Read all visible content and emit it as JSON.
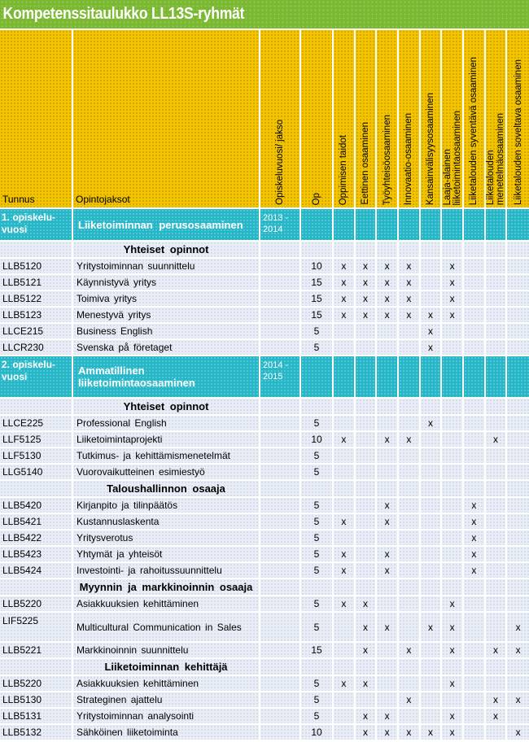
{
  "title": "Kompetenssitaulukko LL13S-ryhmät",
  "mark": "x",
  "colors": {
    "green": "#79b830",
    "yellow": "#f2c500",
    "teal": "#25b6c7",
    "row": "#e9edf5",
    "grid": "#ffffff",
    "text": "#000000",
    "title_text": "#ffffff"
  },
  "header": {
    "tunnus": "Tunnus",
    "opintojaksot": "Opintojaksot",
    "rotated": [
      "Opiskeluvuosi/ jakso",
      "Op",
      "Oppimisen taidot",
      "Eettinen osaaminen",
      "Työyhteisöosaaminen",
      "Innovaatio-osaaminen",
      "Kansainvälisyysosaaminen",
      "Laaja-alainen\nliiketoimintaosaaminen",
      "Liiketalouden syventävä osaaminen",
      "Liiketalouden\nmenetelmäosaaminen",
      "Liiketalouden soveltava osaaminen"
    ]
  },
  "rows": [
    {
      "type": "year",
      "tunnus": "1. opiskelu-\nvuosi",
      "name": "Liiketoiminnan perusosaaminen",
      "years": "2013 -\n2014"
    },
    {
      "type": "section",
      "label": "Yhteiset opinnot"
    },
    {
      "type": "course",
      "code": "LLB5120",
      "name": "Yritystoiminnan suunnittelu",
      "op": "10",
      "marks": [
        1,
        1,
        1,
        1,
        0,
        1,
        0,
        0,
        0
      ]
    },
    {
      "type": "course",
      "code": "LLB5121",
      "name": "Käynnistyvä yritys",
      "op": "15",
      "marks": [
        1,
        1,
        1,
        1,
        0,
        1,
        0,
        0,
        0
      ]
    },
    {
      "type": "course",
      "code": "LLB5122",
      "name": "Toimiva yritys",
      "op": "15",
      "marks": [
        1,
        1,
        1,
        1,
        0,
        1,
        0,
        0,
        0
      ]
    },
    {
      "type": "course",
      "code": "LLB5123",
      "name": "Menestyvä yritys",
      "op": "15",
      "marks": [
        1,
        1,
        1,
        1,
        1,
        1,
        0,
        0,
        0
      ]
    },
    {
      "type": "course",
      "code": "LLCE215",
      "name": "Business English",
      "op": "5",
      "marks": [
        0,
        0,
        0,
        0,
        1,
        0,
        0,
        0,
        0
      ]
    },
    {
      "type": "course",
      "code": "LLCR230",
      "name": "Svenska på företaget",
      "op": "5",
      "marks": [
        0,
        0,
        0,
        0,
        1,
        0,
        0,
        0,
        0
      ]
    },
    {
      "type": "year",
      "tunnus": "2. opiskelu-\nvuosi",
      "name": "Ammatillinen\nliiketoimintaosaaminen",
      "years": "2014 -\n2015"
    },
    {
      "type": "section",
      "label": "Yhteiset opinnot"
    },
    {
      "type": "course",
      "code": "LLCE225",
      "name": "Professional English",
      "op": "5",
      "marks": [
        0,
        0,
        0,
        0,
        1,
        0,
        0,
        0,
        0
      ]
    },
    {
      "type": "course",
      "code": "LLF5125",
      "name": "Liiketoimintaprojekti",
      "op": "10",
      "marks": [
        1,
        0,
        1,
        1,
        0,
        0,
        0,
        1,
        0
      ]
    },
    {
      "type": "course",
      "code": "LLF5130",
      "name": "Tutkimus- ja kehittämismenetelmät",
      "op": "5",
      "marks": [
        0,
        0,
        0,
        0,
        0,
        0,
        0,
        0,
        0
      ]
    },
    {
      "type": "course",
      "code": "LLG5140",
      "name": "Vuorovaikutteinen esimiestyö",
      "op": "5",
      "marks": [
        0,
        0,
        0,
        0,
        0,
        0,
        0,
        0,
        0
      ]
    },
    {
      "type": "section",
      "label": "Taloushallinnon osaaja"
    },
    {
      "type": "course",
      "code": "LLB5420",
      "name": "Kirjanpito ja tilinpäätös",
      "op": "5",
      "marks": [
        0,
        0,
        1,
        0,
        0,
        0,
        1,
        0,
        0
      ]
    },
    {
      "type": "course",
      "code": "LLB5421",
      "name": "Kustannuslaskenta",
      "op": "5",
      "marks": [
        1,
        0,
        1,
        0,
        0,
        0,
        1,
        0,
        0
      ]
    },
    {
      "type": "course",
      "code": "LLB5422",
      "name": "Yritysverotus",
      "op": "5",
      "marks": [
        0,
        0,
        0,
        0,
        0,
        0,
        1,
        0,
        0
      ]
    },
    {
      "type": "course",
      "code": "LLB5423",
      "name": "Yhtymät ja yhteisöt",
      "op": "5",
      "marks": [
        1,
        0,
        1,
        0,
        0,
        0,
        1,
        0,
        0
      ]
    },
    {
      "type": "course",
      "code": "LLB5424",
      "name": "Investointi- ja rahoitussuunnittelu",
      "op": "5",
      "marks": [
        1,
        0,
        1,
        0,
        0,
        0,
        1,
        0,
        0
      ]
    },
    {
      "type": "section",
      "label": "Myynnin ja markkinoinnin osaaja"
    },
    {
      "type": "course",
      "code": "LLB5220",
      "name": "Asiakkuuksien kehittäminen",
      "op": "5",
      "marks": [
        1,
        1,
        0,
        0,
        0,
        1,
        0,
        0,
        0
      ]
    },
    {
      "type": "course",
      "code": "LIF5225",
      "name": "Multicultural Communication in Sales",
      "op": "5",
      "tall": true,
      "marks": [
        0,
        1,
        1,
        0,
        1,
        1,
        0,
        0,
        1
      ]
    },
    {
      "type": "course",
      "code": "LLB5221",
      "name": "Markkinoinnin suunnittelu",
      "op": "15",
      "marks": [
        0,
        1,
        0,
        1,
        0,
        1,
        0,
        1,
        1
      ]
    },
    {
      "type": "section",
      "label": "Liiketoiminnan kehittäjä"
    },
    {
      "type": "course",
      "code": "LLB5220",
      "name": "Asiakkuuksien kehittäminen",
      "op": "5",
      "marks": [
        1,
        1,
        0,
        0,
        0,
        1,
        0,
        0,
        0
      ]
    },
    {
      "type": "course",
      "code": "LLB5130",
      "name": "Strateginen ajattelu",
      "op": "5",
      "marks": [
        0,
        0,
        0,
        1,
        0,
        0,
        0,
        1,
        1
      ]
    },
    {
      "type": "course",
      "code": "LLB5131",
      "name": "Yritystoiminnan analysointi",
      "op": "5",
      "marks": [
        0,
        1,
        1,
        0,
        0,
        1,
        0,
        1,
        0
      ]
    },
    {
      "type": "course",
      "code": "LLB5132",
      "name": "Sähköinen liiketoiminta",
      "op": "10",
      "marks": [
        0,
        1,
        1,
        1,
        1,
        1,
        0,
        0,
        1
      ]
    }
  ]
}
